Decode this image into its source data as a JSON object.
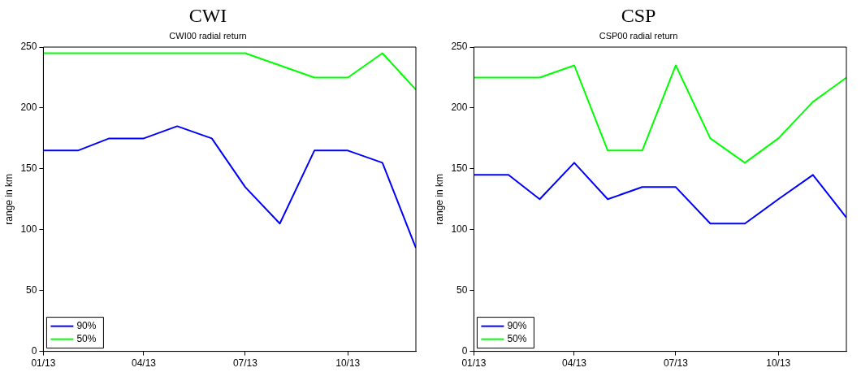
{
  "chart_data": [
    {
      "type": "line",
      "title": "CWI",
      "subtitle": "CWI00 radial return",
      "ylabel": "range in km",
      "x": [
        "2013-01-01",
        "2013-02-01",
        "2013-03-01",
        "2013-04-01",
        "2013-05-01",
        "2013-06-01",
        "2013-07-01",
        "2013-08-01",
        "2013-09-01",
        "2013-10-01",
        "2013-11-01",
        "2013-12-01"
      ],
      "series": [
        {
          "name": "90%",
          "color": "#0000ff",
          "values": [
            165,
            165,
            175,
            175,
            185,
            175,
            135,
            105,
            165,
            165,
            155,
            85
          ]
        },
        {
          "name": "50%",
          "color": "#00ff00",
          "values": [
            245,
            245,
            245,
            245,
            245,
            245,
            245,
            235,
            225,
            225,
            245,
            215
          ]
        }
      ],
      "xlim": [
        "2013-01-01",
        "2013-12-01"
      ],
      "xticks": [
        {
          "value": "2013-01-01",
          "label": "01/13"
        },
        {
          "value": "2013-04-01",
          "label": "04/13"
        },
        {
          "value": "2013-07-01",
          "label": "07/13"
        },
        {
          "value": "2013-10-01",
          "label": "10/13"
        }
      ],
      "ylim": [
        0,
        250
      ],
      "yticks": [
        0,
        50,
        100,
        150,
        200,
        250
      ],
      "grid": false,
      "legend": "bottom left",
      "marker": "none",
      "line_style": "solid"
    },
    {
      "type": "line",
      "title": "CSP",
      "subtitle": "CSP00 radial return",
      "ylabel": "range in km",
      "x": [
        "2013-01-01",
        "2013-02-01",
        "2013-03-01",
        "2013-04-01",
        "2013-05-01",
        "2013-06-01",
        "2013-07-01",
        "2013-08-01",
        "2013-09-01",
        "2013-10-01",
        "2013-11-01",
        "2013-12-01"
      ],
      "series": [
        {
          "name": "90%",
          "color": "#0000ff",
          "values": [
            145,
            145,
            125,
            155,
            125,
            135,
            135,
            105,
            105,
            125,
            145,
            110
          ]
        },
        {
          "name": "50%",
          "color": "#00ff00",
          "values": [
            225,
            225,
            225,
            235,
            165,
            165,
            235,
            175,
            155,
            175,
            205,
            225
          ]
        }
      ],
      "xlim": [
        "2013-01-01",
        "2013-12-01"
      ],
      "xticks": [
        {
          "value": "2013-01-01",
          "label": "01/13"
        },
        {
          "value": "2013-04-01",
          "label": "04/13"
        },
        {
          "value": "2013-07-01",
          "label": "07/13"
        },
        {
          "value": "2013-10-01",
          "label": "10/13"
        }
      ],
      "ylim": [
        0,
        250
      ],
      "yticks": [
        0,
        50,
        100,
        150,
        200,
        250
      ],
      "grid": false,
      "legend": "bottom left",
      "marker": "none",
      "line_style": "solid"
    }
  ]
}
